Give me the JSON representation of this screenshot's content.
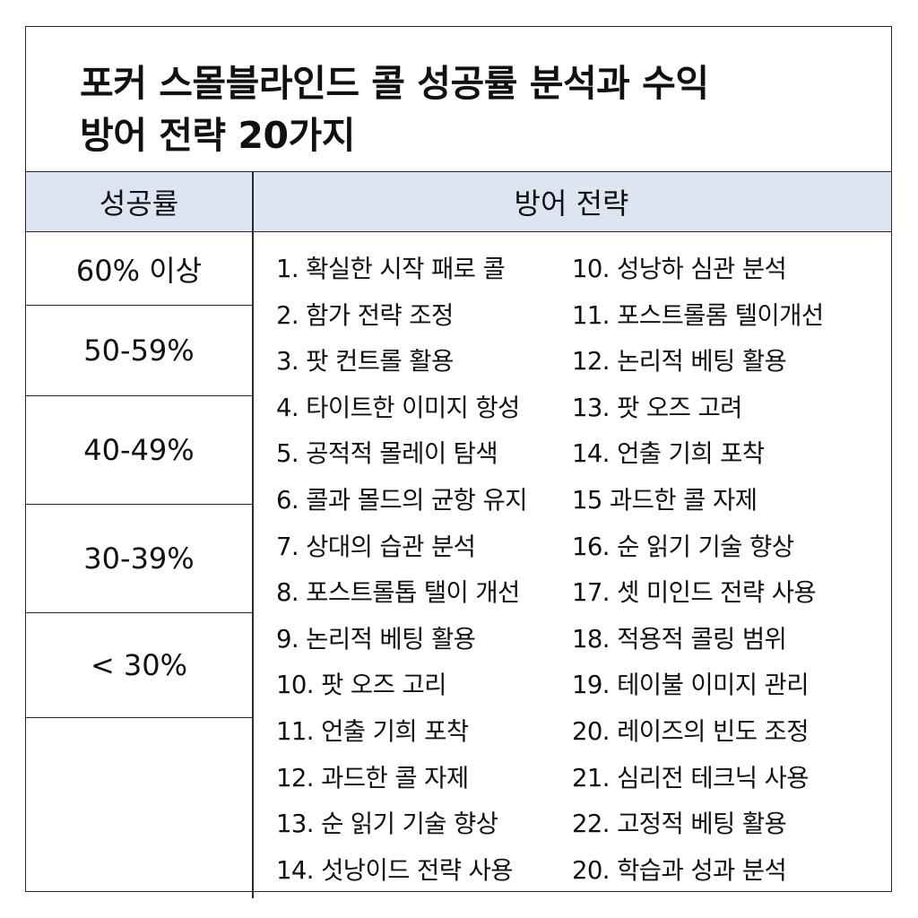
{
  "title_line1": "포커 스몰블라인드 콜 성공률 분석과 수익",
  "title_line2": "방어 전략 20가지",
  "headers": {
    "success_rate": "성공률",
    "defense_strategy": "방어 전략"
  },
  "success_rates": [
    "60% 이상",
    "50-59%",
    "40-49%",
    "30-39%",
    "< 30%"
  ],
  "strategies_col1": [
    "1. 확실한 시작 패로 콜",
    "2. 함가 전략 조정",
    "3. 팟 컨트롤 활용",
    "4. 타이트한 이미지 항성",
    "5. 공적적 몰레이 탐색",
    "6. 콜과 몰드의 균항 유지",
    "7. 상대의 습관 분석",
    "8. 포스트롤톱 탤이 개선",
    "9. 논리적 베팅 활용",
    "10. 팟 오즈 고리",
    "11. 언출 기희 포착",
    "12. 과드한 콜 자제",
    "13. 순 읽기 기술 향상",
    "14. 섯낭이드 전략 사용"
  ],
  "strategies_col2": [
    "10. 성낭하 심관 분석",
    "11. 포스트롤롬 텔이개선",
    "12. 논리적 베팅 활용",
    "13. 팟 오즈 고려",
    "14. 언출 기희 포착",
    "15  과드한 콜 자제",
    "16. 순 읽기 기술 향상",
    "17. 셋 미인드 전략 사용",
    "18. 적용적 콜링 범위",
    "19. 테이불 이미지 관리",
    "20. 레이즈의 빈도 조정",
    "21. 심리전 테크닉 사용",
    "22. 고정적 베팅 활용",
    "20. 학습과 성과 분석"
  ]
}
